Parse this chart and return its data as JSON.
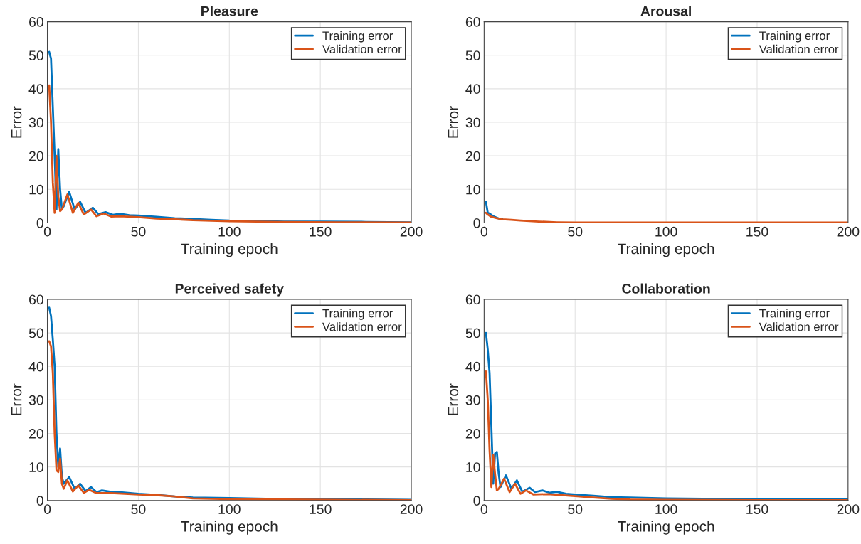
{
  "chart_data": [
    {
      "type": "line",
      "title": "Pleasure",
      "xlabel": "Training epoch",
      "ylabel": "Error",
      "xlim": [
        0,
        200
      ],
      "ylim": [
        0,
        60
      ],
      "xticks": [
        0,
        50,
        100,
        150,
        200
      ],
      "yticks": [
        0,
        10,
        20,
        30,
        40,
        50,
        60
      ],
      "grid": true,
      "legend": "top right",
      "series": [
        {
          "name": "Training error",
          "color": "#0072bd",
          "x": [
            1,
            2,
            4,
            5,
            6,
            7,
            8,
            9,
            12,
            15,
            18,
            21,
            25,
            28,
            32,
            36,
            40,
            45,
            50,
            60,
            70,
            80,
            90,
            100,
            115,
            130,
            150,
            175,
            200
          ],
          "values": [
            51,
            49,
            20,
            4,
            22,
            10,
            4,
            5,
            9.3,
            4,
            6.3,
            3,
            4.5,
            2.6,
            3.2,
            2.4,
            2.7,
            2.3,
            2.2,
            1.8,
            1.4,
            1.2,
            0.9,
            0.7,
            0.6,
            0.4,
            0.4,
            0.3,
            0.2
          ]
        },
        {
          "name": "Validation error",
          "color": "#d95319",
          "x": [
            1,
            2,
            3,
            4,
            5,
            6,
            7,
            8,
            11,
            14,
            17,
            20,
            24,
            27,
            31,
            35,
            40,
            50,
            60,
            70,
            80,
            100,
            130,
            160,
            200
          ],
          "values": [
            41,
            30,
            12,
            3,
            20,
            8,
            3.5,
            4,
            8.5,
            3,
            6,
            2.5,
            4,
            2,
            2.8,
            1.9,
            2,
            1.7,
            1.3,
            1.1,
            0.8,
            0.5,
            0.3,
            0.2,
            0.1
          ]
        }
      ]
    },
    {
      "type": "line",
      "title": "Arousal",
      "xlabel": "Training epoch",
      "ylabel": "Error",
      "xlim": [
        0,
        200
      ],
      "ylim": [
        0,
        60
      ],
      "xticks": [
        0,
        50,
        100,
        150,
        200
      ],
      "yticks": [
        0,
        10,
        20,
        30,
        40,
        50,
        60
      ],
      "grid": true,
      "legend": "top right",
      "series": [
        {
          "name": "Training error",
          "color": "#0072bd",
          "x": [
            1,
            2,
            3,
            5,
            8,
            10
          ],
          "values": [
            6.3,
            3,
            2.8,
            2,
            1.3,
            1.2
          ]
        },
        {
          "name": "Validation error",
          "color": "#d95319",
          "x": [
            1,
            2,
            4,
            7,
            10,
            15,
            20,
            30,
            40,
            50,
            100,
            200
          ],
          "values": [
            3,
            2.5,
            1.8,
            1.4,
            1.1,
            0.9,
            0.7,
            0.4,
            0.2,
            0.1,
            0.1,
            0.1
          ]
        }
      ]
    },
    {
      "type": "line",
      "title": "Perceived safety",
      "xlabel": "Training epoch",
      "ylabel": "Error",
      "xlim": [
        0,
        200
      ],
      "ylim": [
        0,
        60
      ],
      "xticks": [
        0,
        50,
        100,
        150,
        200
      ],
      "yticks": [
        0,
        10,
        20,
        30,
        40,
        50,
        60
      ],
      "grid": true,
      "legend": "top right",
      "series": [
        {
          "name": "Training error",
          "color": "#0072bd",
          "x": [
            1,
            2,
            3,
            4,
            5,
            6,
            7,
            8,
            9,
            12,
            15,
            18,
            21,
            24,
            27,
            30,
            35,
            40,
            50,
            60,
            70,
            80,
            100,
            120,
            150,
            175,
            200
          ],
          "values": [
            57.5,
            55,
            48,
            40,
            20,
            10,
            15.5,
            7,
            5,
            7,
            3.5,
            5,
            2.8,
            4,
            2.5,
            3,
            2.6,
            2.5,
            2,
            1.7,
            1.2,
            0.9,
            0.7,
            0.5,
            0.4,
            0.3,
            0.2
          ]
        },
        {
          "name": "Validation error",
          "color": "#d95319",
          "x": [
            1,
            2,
            3,
            4,
            5,
            6,
            7,
            8,
            9,
            11,
            14,
            17,
            20,
            23,
            27,
            35,
            50,
            60,
            70,
            80,
            100,
            130,
            160,
            200
          ],
          "values": [
            47.5,
            46,
            38,
            20,
            9,
            8.5,
            12.5,
            5,
            3.5,
            6,
            2.7,
            4.5,
            2.3,
            3.2,
            2.2,
            2.2,
            1.8,
            1.6,
            1.2,
            0.6,
            0.4,
            0.3,
            0.2,
            0.1
          ]
        }
      ]
    },
    {
      "type": "line",
      "title": "Collaboration",
      "xlabel": "Training epoch",
      "ylabel": "Error",
      "xlim": [
        0,
        200
      ],
      "ylim": [
        0,
        60
      ],
      "xticks": [
        0,
        50,
        100,
        150,
        200
      ],
      "yticks": [
        0,
        10,
        20,
        30,
        40,
        50,
        60
      ],
      "grid": true,
      "legend": "top right",
      "series": [
        {
          "name": "Training error",
          "color": "#0072bd",
          "x": [
            1,
            2,
            3,
            4,
            5,
            6,
            7,
            8,
            9,
            12,
            15,
            18,
            21,
            25,
            28,
            32,
            36,
            40,
            45,
            50,
            60,
            70,
            80,
            100,
            120,
            150,
            175,
            200
          ],
          "values": [
            50,
            45,
            38,
            22,
            5,
            14,
            14.5,
            8,
            4,
            7.5,
            3.5,
            6,
            2.6,
            3.8,
            2.5,
            3,
            2.3,
            2.6,
            2,
            1.8,
            1.4,
            1,
            0.9,
            0.6,
            0.5,
            0.4,
            0.3,
            0.3
          ]
        },
        {
          "name": "Validation error",
          "color": "#d95319",
          "x": [
            1,
            2,
            3,
            4,
            5,
            6,
            7,
            8,
            11,
            14,
            17,
            20,
            23,
            27,
            35,
            50,
            60,
            70,
            80,
            100,
            150,
            200
          ],
          "values": [
            38.5,
            30,
            15,
            4,
            13.5,
            8,
            3,
            3.5,
            6.5,
            2.5,
            5,
            2,
            3,
            1.8,
            1.9,
            1.3,
            0.9,
            0.5,
            0.3,
            0.2,
            0.1,
            0.1
          ]
        }
      ]
    }
  ]
}
